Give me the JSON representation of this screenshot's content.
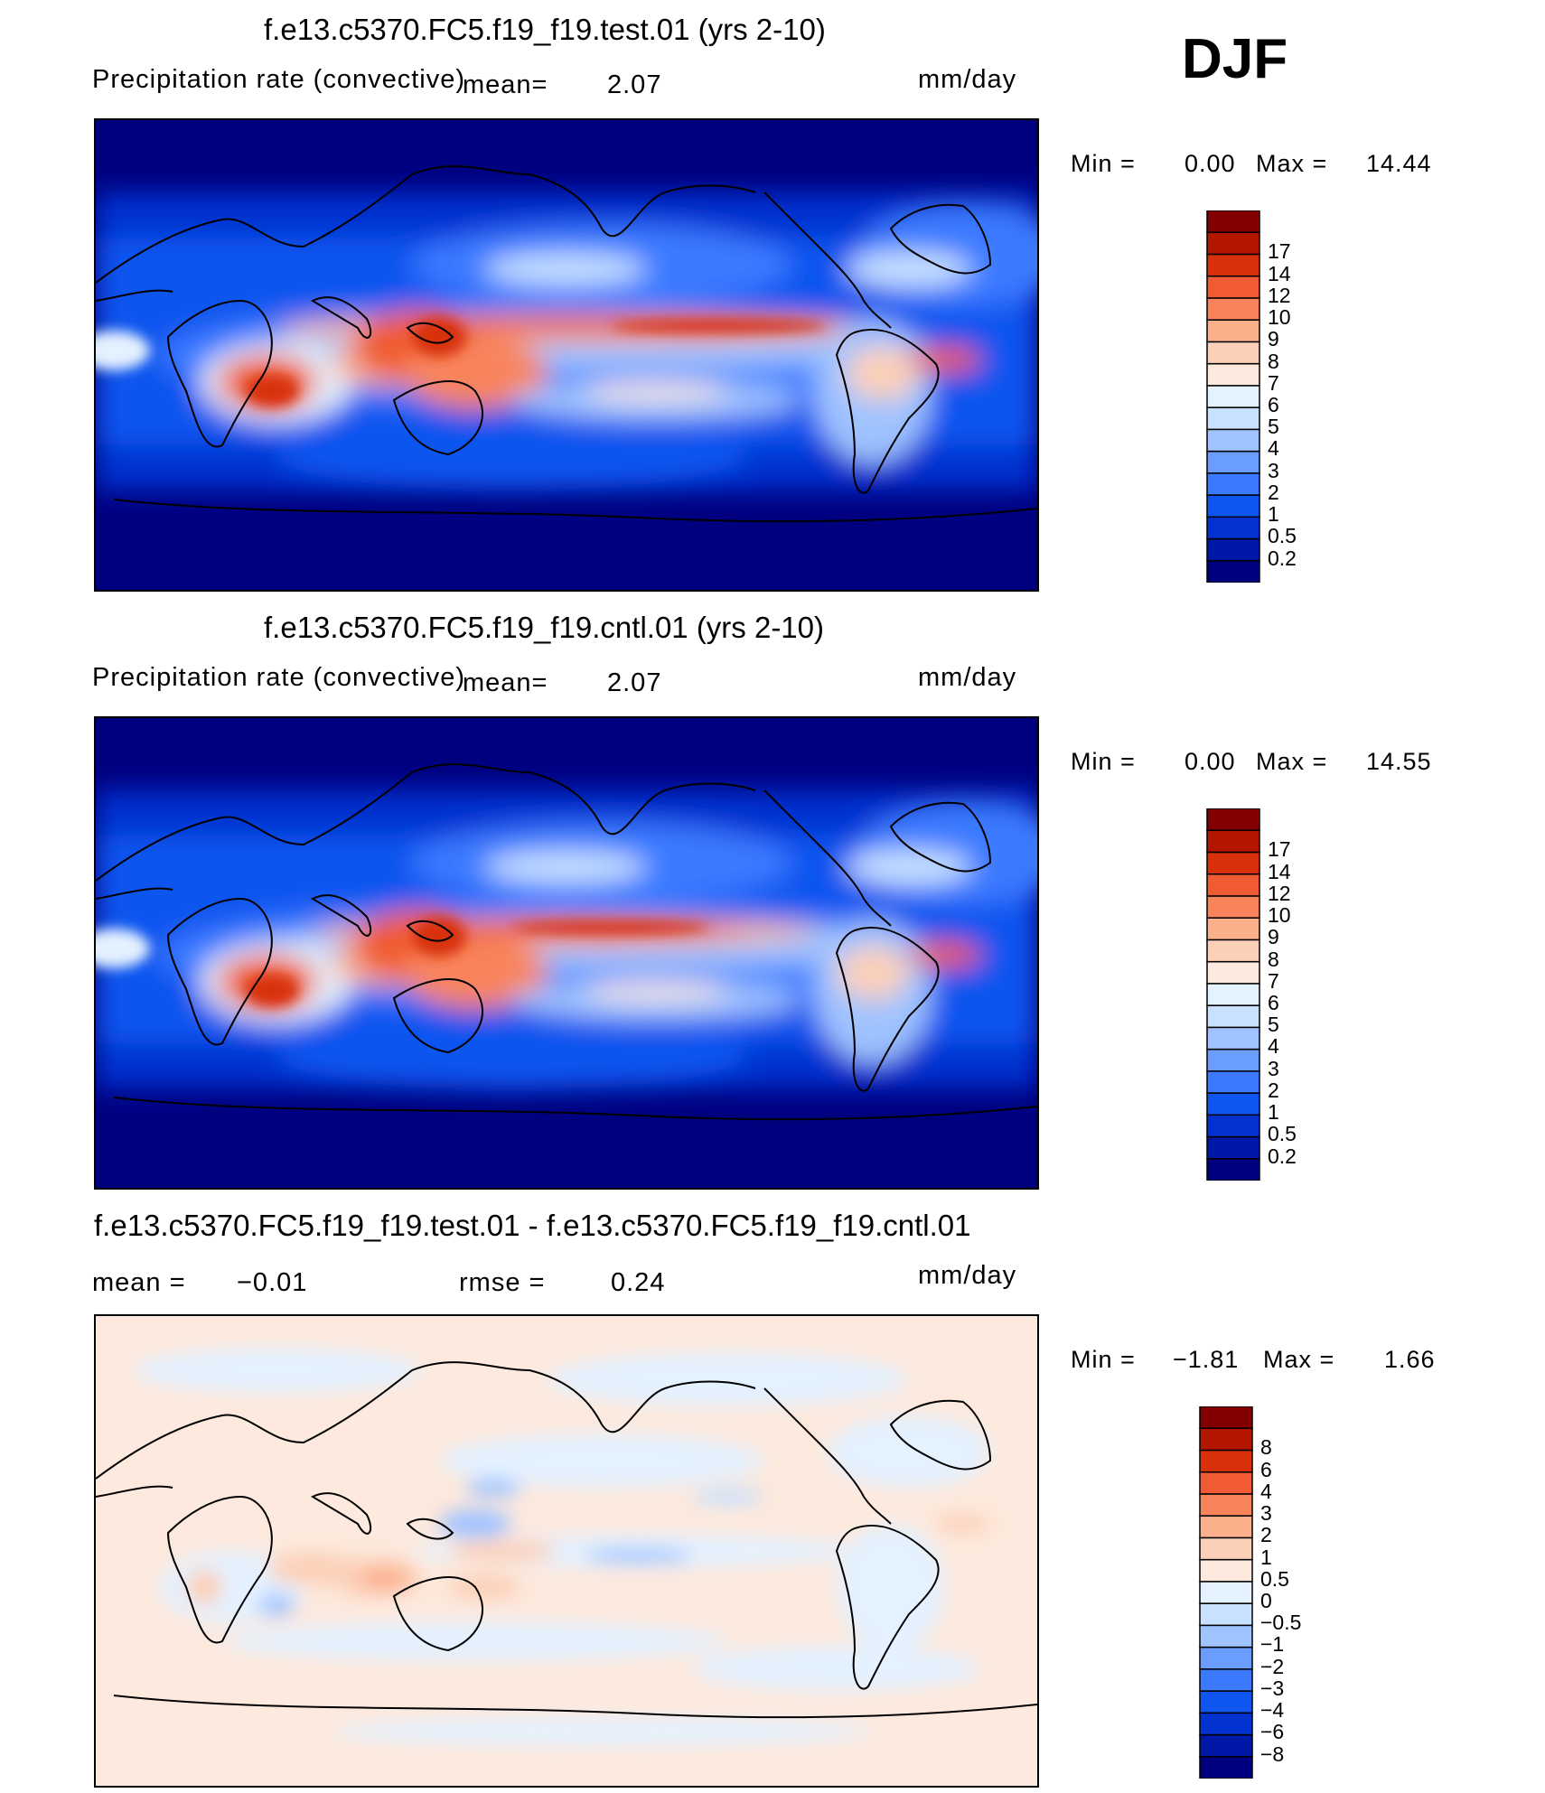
{
  "season": "DJF",
  "colors": {
    "seq": [
      "#00007f",
      "#0018a7",
      "#0233d0",
      "#0f55ef",
      "#3b7aff",
      "#6b9dff",
      "#9fc3ff",
      "#c8e1ff",
      "#e4f1ff",
      "#fde9dd",
      "#fcd0b8",
      "#fbaf8b",
      "#f8845c",
      "#f05b33",
      "#d8300b",
      "#b31700",
      "#830000"
    ],
    "div": [
      "#00007f",
      "#0018a7",
      "#0233d0",
      "#0f55ef",
      "#3b7aff",
      "#6b9dff",
      "#9fc3ff",
      "#c8e1ff",
      "#e4f1ff",
      "#fde9dd",
      "#fcd0b8",
      "#fbaf8b",
      "#f8845c",
      "#f05b33",
      "#d8300b",
      "#b31700",
      "#830000"
    ]
  },
  "panels": [
    {
      "title": "f.e13.c5370.FC5.f19_f19.test.01 (yrs 2-10)",
      "field": "Precipitation rate (convective)",
      "mean_label": "mean=",
      "mean_value": "2.07",
      "units": "mm/day",
      "min_label": "Min =",
      "min_value": "0.00",
      "max_label": "Max =",
      "max_value": "14.44"
    },
    {
      "title": "f.e13.c5370.FC5.f19_f19.cntl.01 (yrs 2-10)",
      "field": "Precipitation rate (convective)",
      "mean_label": "mean=",
      "mean_value": "2.07",
      "units": "mm/day",
      "min_label": "Min =",
      "min_value": "0.00",
      "max_label": "Max =",
      "max_value": "14.55"
    },
    {
      "title": "f.e13.c5370.FC5.f19_f19.test.01 - f.e13.c5370.FC5.f19_f19.cntl.01",
      "mean_label": "mean =",
      "mean_value": "−0.01",
      "rmse_label": "rmse =",
      "rmse_value": "0.24",
      "units": "mm/day",
      "min_label": "Min =",
      "min_value": "−1.81",
      "max_label": "Max =",
      "max_value": "1.66"
    }
  ],
  "chart_data": [
    {
      "type": "heatmap",
      "title": "f.e13.c5370.FC5.f19_f19.test.01 (yrs 2-10)",
      "variable": "Precipitation rate (convective)",
      "units": "mm/day",
      "mean": 2.07,
      "min": 0.0,
      "max": 14.44,
      "contour_levels": [
        "0.2",
        "0.5",
        "1",
        "2",
        "3",
        "4",
        "5",
        "6",
        "7",
        "8",
        "9",
        "10",
        "12",
        "14",
        "17"
      ]
    },
    {
      "type": "heatmap",
      "title": "f.e13.c5370.FC5.f19_f19.cntl.01 (yrs 2-10)",
      "variable": "Precipitation rate (convective)",
      "units": "mm/day",
      "mean": 2.07,
      "min": 0.0,
      "max": 14.55,
      "contour_levels": [
        "0.2",
        "0.5",
        "1",
        "2",
        "3",
        "4",
        "5",
        "6",
        "7",
        "8",
        "9",
        "10",
        "12",
        "14",
        "17"
      ]
    },
    {
      "type": "heatmap",
      "title": "f.e13.c5370.FC5.f19_f19.test.01 - f.e13.c5370.FC5.f19_f19.cntl.01",
      "units": "mm/day",
      "mean": -0.01,
      "rmse": 0.24,
      "min": -1.81,
      "max": 1.66,
      "contour_levels": [
        "−8",
        "−6",
        "−4",
        "−3",
        "−2",
        "−1",
        "−0.5",
        "0",
        "0.5",
        "1",
        "2",
        "3",
        "4",
        "6",
        "8"
      ]
    }
  ]
}
